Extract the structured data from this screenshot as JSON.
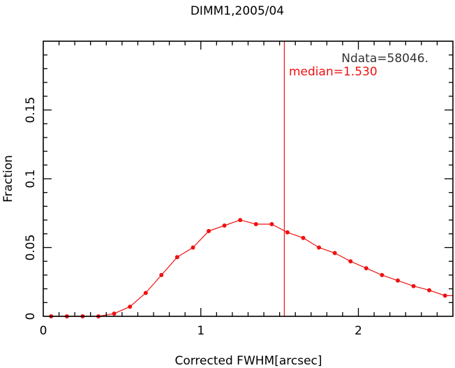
{
  "chart_data": {
    "type": "line",
    "title": "DIMM1,2005/04",
    "xlabel": "Corrected FWHM[arcsec]",
    "ylabel": "Fraction",
    "xlim": [
      0,
      2.6
    ],
    "ylim": [
      0,
      0.2
    ],
    "x_ticks": [
      {
        "value": 0,
        "label": "0"
      },
      {
        "value": 1,
        "label": "1"
      },
      {
        "value": 2,
        "label": "2"
      }
    ],
    "y_ticks": [
      {
        "value": 0,
        "label": "0"
      },
      {
        "value": 0.05,
        "label": "0.05"
      },
      {
        "value": 0.1,
        "label": "0.1"
      },
      {
        "value": 0.15,
        "label": "0.15"
      }
    ],
    "x_minor_step": 0.1,
    "y_minor_step": 0.01,
    "series": [
      {
        "color": "#ee1111",
        "x": [
          0.05,
          0.15,
          0.25,
          0.35,
          0.45,
          0.55,
          0.65,
          0.75,
          0.85,
          0.95,
          1.05,
          1.15,
          1.25,
          1.35,
          1.45,
          1.55,
          1.65,
          1.75,
          1.85,
          1.95,
          2.05,
          2.15,
          2.25,
          2.35,
          2.45,
          2.55,
          2.6
        ],
        "y": [
          0.0,
          0.0,
          0.0,
          0.0,
          0.002,
          0.007,
          0.017,
          0.03,
          0.043,
          0.05,
          0.062,
          0.066,
          0.07,
          0.067,
          0.067,
          0.061,
          0.057,
          0.05,
          0.046,
          0.04,
          0.035,
          0.03,
          0.026,
          0.022,
          0.019,
          0.015,
          0.015
        ],
        "markers": [
          true,
          true,
          true,
          true,
          true,
          true,
          true,
          true,
          true,
          true,
          true,
          true,
          true,
          true,
          true,
          true,
          true,
          true,
          true,
          true,
          true,
          true,
          true,
          true,
          true,
          true,
          false
        ]
      }
    ],
    "median_line": {
      "x": 1.53,
      "color": "#ee1111"
    },
    "annotations": {
      "ndata": {
        "text": "Ndata=58046.",
        "color": "#333333"
      },
      "median": {
        "text": "median=1.530",
        "color": "#ee1111"
      }
    },
    "grid": false
  }
}
